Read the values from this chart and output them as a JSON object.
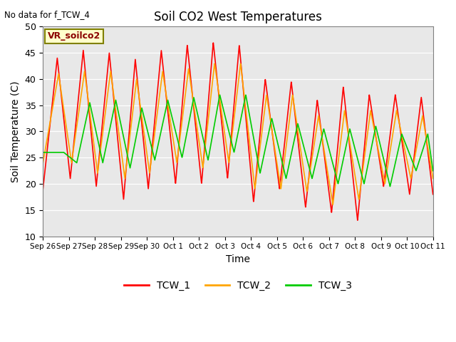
{
  "title": "Soil CO2 West Temperatures",
  "xlabel": "Time",
  "ylabel": "Soil Temperature (C)",
  "note": "No data for f_TCW_4",
  "annotation": "VR_soilco2",
  "ylim": [
    10,
    50
  ],
  "bg_color": "#e8e8e8",
  "series_colors": {
    "TCW_1": "#ff0000",
    "TCW_2": "#ffa500",
    "TCW_3": "#00cc00"
  },
  "tick_labels": [
    "Sep 26",
    "Sep 27",
    "Sep 28",
    "Sep 29",
    "Sep 30",
    "Oct 1",
    "Oct 2",
    "Oct 3",
    "Oct 4",
    "Oct 5",
    "Oct 6",
    "Oct 7",
    "Oct 8",
    "Oct 9",
    "Oct 10",
    "Oct 11"
  ],
  "total_days": 15
}
